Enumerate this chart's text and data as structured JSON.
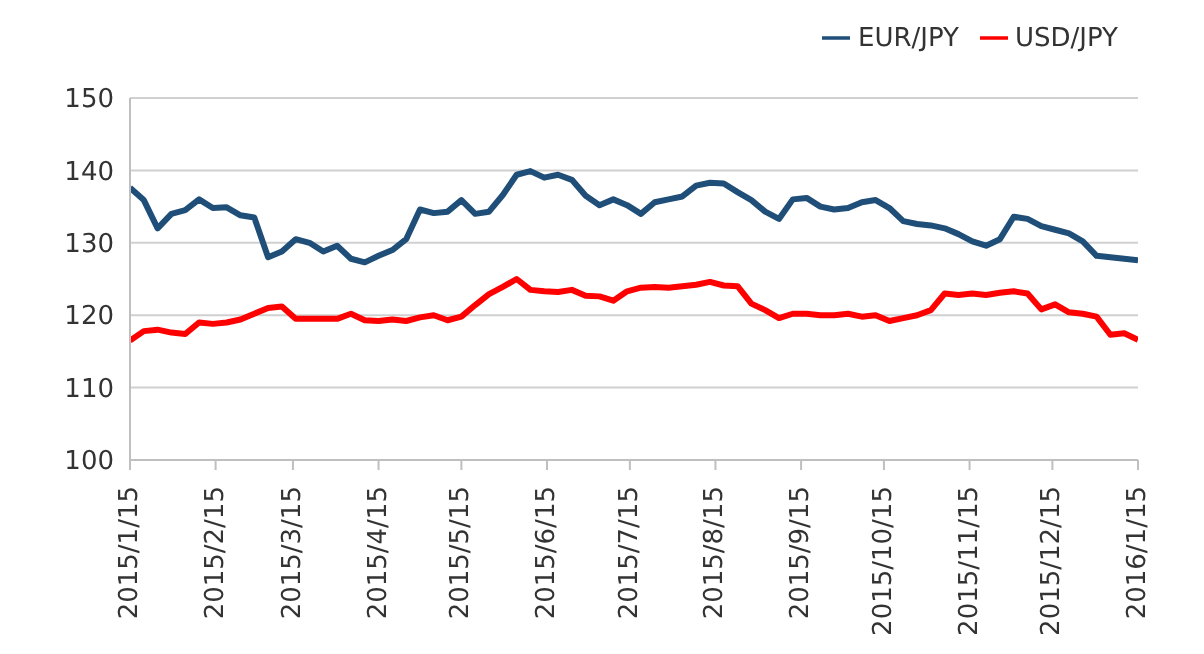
{
  "chart_data": {
    "type": "line",
    "x": [
      "2015-01-15",
      "2015-01-20",
      "2015-01-25",
      "2015-01-30",
      "2015-02-04",
      "2015-02-09",
      "2015-02-14",
      "2015-02-19",
      "2015-02-24",
      "2015-03-01",
      "2015-03-06",
      "2015-03-11",
      "2015-03-16",
      "2015-03-21",
      "2015-03-26",
      "2015-03-31",
      "2015-04-05",
      "2015-04-10",
      "2015-04-15",
      "2015-04-20",
      "2015-04-25",
      "2015-04-30",
      "2015-05-05",
      "2015-05-10",
      "2015-05-15",
      "2015-05-20",
      "2015-05-25",
      "2015-05-30",
      "2015-06-04",
      "2015-06-09",
      "2015-06-14",
      "2015-06-19",
      "2015-06-24",
      "2015-06-29",
      "2015-07-04",
      "2015-07-09",
      "2015-07-14",
      "2015-07-19",
      "2015-07-24",
      "2015-07-29",
      "2015-08-03",
      "2015-08-08",
      "2015-08-13",
      "2015-08-18",
      "2015-08-23",
      "2015-08-28",
      "2015-09-02",
      "2015-09-07",
      "2015-09-12",
      "2015-09-17",
      "2015-09-22",
      "2015-09-27",
      "2015-10-02",
      "2015-10-07",
      "2015-10-12",
      "2015-10-17",
      "2015-10-22",
      "2015-10-27",
      "2015-11-01",
      "2015-11-06",
      "2015-11-11",
      "2015-11-16",
      "2015-11-21",
      "2015-11-26",
      "2015-12-01",
      "2015-12-06",
      "2015-12-11",
      "2015-12-16",
      "2015-12-21",
      "2015-12-26",
      "2015-12-31",
      "2016-01-05",
      "2016-01-10",
      "2016-01-15"
    ],
    "series": [
      {
        "name": "USD/JPY",
        "color": "#ff0000",
        "values": [
          116.5,
          117.8,
          118,
          117.6,
          117.4,
          119,
          118.8,
          119,
          119.4,
          120.2,
          121,
          121.2,
          119.5,
          119.5,
          119.5,
          119.5,
          120.2,
          119.3,
          119.2,
          119.4,
          119.2,
          119.7,
          120,
          119.3,
          119.8,
          121.4,
          122.9,
          123.9,
          125,
          123.5,
          123.3,
          123.2,
          123.5,
          122.7,
          122.6,
          122,
          123.3,
          123.8,
          123.9,
          123.8,
          124,
          124.2,
          124.6,
          124.1,
          124,
          121.6,
          120.7,
          119.6,
          120.2,
          120.2,
          120,
          120,
          120.2,
          119.8,
          120,
          119.2,
          119.6,
          120,
          120.7,
          123,
          122.8,
          123,
          122.8,
          123.1,
          123.3,
          123,
          120.8,
          121.5,
          120.4,
          120.2,
          119.8,
          117.3,
          117.5,
          116.6
        ]
      },
      {
        "name": "EUR/JPY",
        "color": "#1f4e79",
        "values": [
          137.6,
          135.9,
          132,
          134,
          134.5,
          136,
          134.8,
          134.9,
          133.8,
          133.5,
          128,
          128.8,
          130.5,
          130,
          128.8,
          129.6,
          127.8,
          127.3,
          128.2,
          129,
          130.5,
          134.6,
          134.1,
          134.3,
          135.9,
          134,
          134.3,
          136.6,
          139.4,
          139.9,
          139,
          139.4,
          138.7,
          136.5,
          135.2,
          136,
          135.2,
          134,
          135.6,
          136,
          136.4,
          137.9,
          138.3,
          138.2,
          137,
          135.9,
          134.3,
          133.3,
          136,
          136.2,
          135,
          134.6,
          134.8,
          135.6,
          135.9,
          134.8,
          133,
          132.6,
          132.4,
          132,
          131.2,
          130.2,
          129.6,
          130.5,
          133.6,
          133.3,
          132.3,
          131.8,
          131.3,
          130.2,
          128.2,
          128,
          127.8,
          127.6
        ]
      }
    ],
    "xlim": [
      "2015-01-15",
      "2016-01-15"
    ],
    "xticks": [
      {
        "value": "2015-01-15",
        "label": "2015/1/15"
      },
      {
        "value": "2015-02-15",
        "label": "2015/2/15"
      },
      {
        "value": "2015-03-15",
        "label": "2015/3/15"
      },
      {
        "value": "2015-04-15",
        "label": "2015/4/15"
      },
      {
        "value": "2015-05-15",
        "label": "2015/5/15"
      },
      {
        "value": "2015-06-15",
        "label": "2015/6/15"
      },
      {
        "value": "2015-07-15",
        "label": "2015/7/15"
      },
      {
        "value": "2015-08-15",
        "label": "2015/8/15"
      },
      {
        "value": "2015-09-15",
        "label": "2015/9/15"
      },
      {
        "value": "2015-10-15",
        "label": "2015/10/15"
      },
      {
        "value": "2015-11-15",
        "label": "2015/11/15"
      },
      {
        "value": "2015-12-15",
        "label": "2015/12/15"
      },
      {
        "value": "2016-01-15",
        "label": "2016/1/15"
      }
    ],
    "ylim": [
      100,
      150
    ],
    "yticks": [
      100,
      110,
      120,
      130,
      140,
      150
    ],
    "grid": "y",
    "legend": "top right",
    "marker": "none",
    "line_style": "solid"
  }
}
